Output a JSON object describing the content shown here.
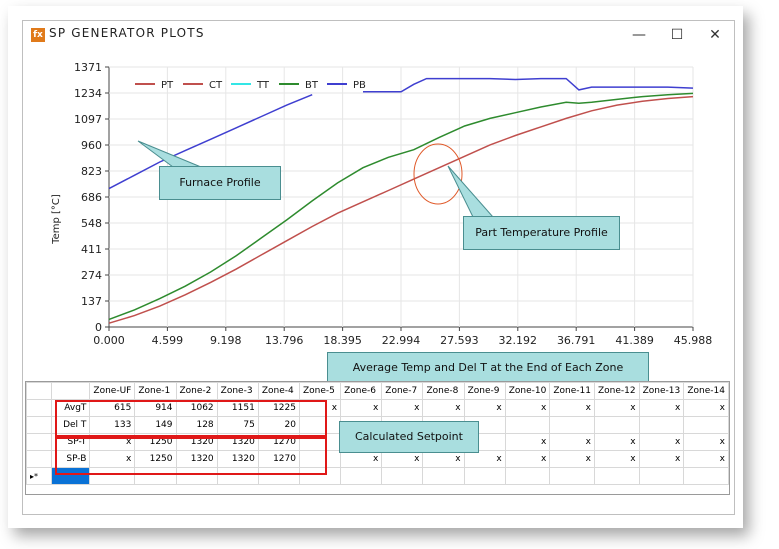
{
  "window": {
    "title": "SP GENERATOR PLOTS",
    "icon_text": "fx",
    "controls": {
      "minimize": "—",
      "maximize": "☐",
      "close": "✕"
    }
  },
  "chart_data": {
    "type": "line",
    "ylabel": "Temp [°C]",
    "xlabel": "",
    "xlim": [
      0,
      45.988
    ],
    "ylim": [
      0,
      1371
    ],
    "xticks": [
      "0.000",
      "4.599",
      "9.198",
      "13.796",
      "18.395",
      "22.994",
      "27.593",
      "32.192",
      "36.791",
      "41.389",
      "45.988"
    ],
    "yticks": [
      "0",
      "137",
      "274",
      "411",
      "548",
      "686",
      "823",
      "960",
      "1097",
      "1234",
      "1371"
    ],
    "legend_position": "top",
    "series": [
      {
        "name": "PT",
        "color": "#c0504d",
        "x": [
          0,
          2,
          4,
          6,
          8,
          10,
          12,
          14,
          16,
          18,
          20,
          22,
          24,
          26,
          28,
          30,
          32,
          34,
          36,
          38,
          40,
          42,
          44,
          45.988
        ],
        "y": [
          20,
          60,
          110,
          170,
          235,
          305,
          380,
          455,
          530,
          600,
          660,
          720,
          780,
          840,
          900,
          960,
          1010,
          1055,
          1100,
          1140,
          1170,
          1190,
          1205,
          1215
        ]
      },
      {
        "name": "CT",
        "color": "#c0504d",
        "x": [],
        "y": []
      },
      {
        "name": "TT",
        "color": "#33e6e6",
        "x": [],
        "y": []
      },
      {
        "name": "BT",
        "color": "#2e8b2e",
        "x": [
          0,
          2,
          4,
          6,
          8,
          10,
          12,
          14,
          16,
          18,
          20,
          22,
          24,
          26,
          28,
          30,
          32,
          34,
          36,
          37,
          38,
          40,
          42,
          44,
          45.988
        ],
        "y": [
          40,
          90,
          150,
          215,
          290,
          375,
          470,
          565,
          665,
          760,
          840,
          895,
          935,
          1000,
          1060,
          1100,
          1130,
          1160,
          1185,
          1180,
          1185,
          1200,
          1215,
          1225,
          1232
        ]
      },
      {
        "name": "PB",
        "color": "#3f3fd0",
        "x": [
          0,
          2,
          4,
          6,
          8,
          10,
          12,
          14,
          16,
          null,
          20,
          22,
          23,
          24,
          25,
          26,
          27,
          28,
          30,
          32,
          34,
          36,
          37,
          38,
          40,
          42,
          44,
          45.988
        ],
        "y": [
          730,
          800,
          870,
          930,
          990,
          1050,
          1110,
          1170,
          1225,
          null,
          1240,
          1240,
          1240,
          1280,
          1310,
          1310,
          1310,
          1310,
          1310,
          1305,
          1310,
          1310,
          1250,
          1265,
          1265,
          1265,
          1265,
          1260
        ]
      }
    ]
  },
  "callouts": {
    "furnace": "Furnace Profile",
    "part": "Part Temperature  Profile",
    "avg": "Average Temp  and Del T at the End of Each Zone",
    "setpoint": "Calculated Setpoint"
  },
  "grid": {
    "columns": [
      "",
      "Zone-UF",
      "Zone-1",
      "Zone-2",
      "Zone-3",
      "Zone-4",
      "Zone-5",
      "Zone-6",
      "Zone-7",
      "Zone-8",
      "Zone-9",
      "Zone-10",
      "Zone-11",
      "Zone-12",
      "Zone-13",
      "Zone-14"
    ],
    "rows": [
      {
        "label": "AvgT",
        "cells": [
          "615",
          "914",
          "1062",
          "1151",
          "1225",
          "x",
          "x",
          "x",
          "x",
          "x",
          "x",
          "x",
          "x",
          "x",
          "x"
        ]
      },
      {
        "label": "Del T",
        "cells": [
          "133",
          "149",
          "128",
          "75",
          "20",
          "",
          "",
          "",
          "",
          "",
          "",
          "",
          "",
          "",
          ""
        ]
      },
      {
        "label": "SP-T",
        "cells": [
          "x",
          "1250",
          "1320",
          "1320",
          "1270",
          "",
          "",
          "",
          "",
          "",
          "x",
          "x",
          "x",
          "x",
          "x"
        ]
      },
      {
        "label": "SP-B",
        "cells": [
          "x",
          "1250",
          "1320",
          "1320",
          "1270",
          "",
          "x",
          "x",
          "x",
          "x",
          "x",
          "x",
          "x",
          "x",
          "x"
        ]
      }
    ],
    "new_row_marker": "▸*"
  }
}
